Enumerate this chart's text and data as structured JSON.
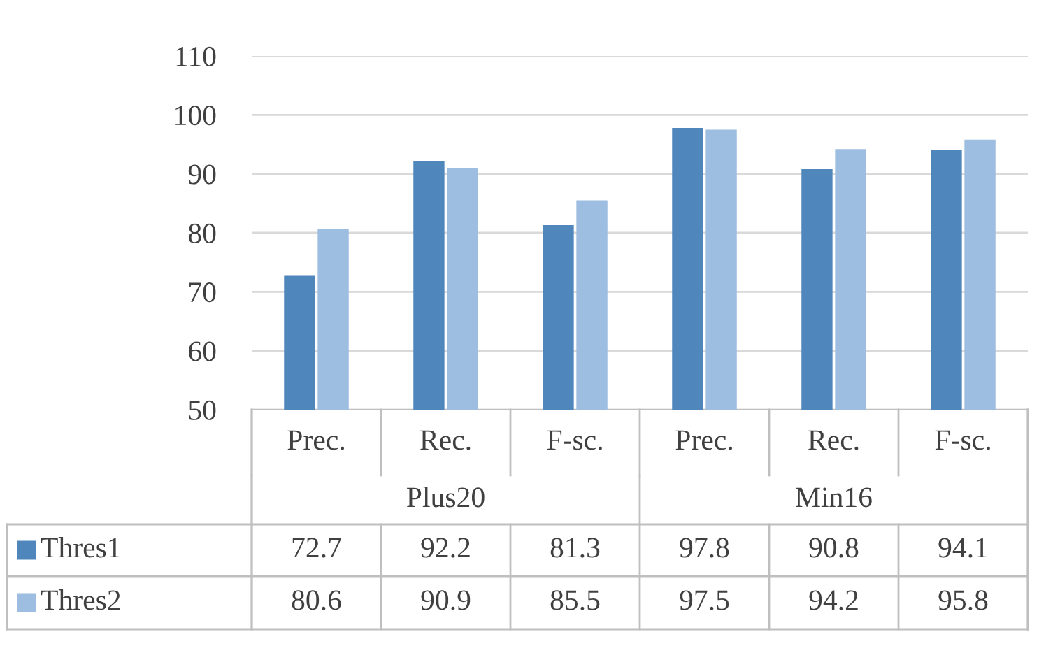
{
  "chart_data": {
    "type": "bar",
    "categories": [
      "Prec.",
      "Rec.",
      "F-sc.",
      "Prec.",
      "Rec.",
      "F-sc."
    ],
    "annotations": [
      "Plus20",
      "Min16"
    ],
    "series": [
      {
        "name": "Thres1",
        "color": "#4f86bb",
        "values": [
          72.7,
          92.2,
          81.3,
          97.8,
          90.8,
          94.1
        ]
      },
      {
        "name": "Thres2",
        "color": "#9dbde1",
        "values": [
          80.6,
          90.9,
          85.5,
          97.5,
          94.2,
          95.8
        ]
      }
    ],
    "ylim": [
      50,
      110
    ],
    "yticks": [
      50,
      60,
      70,
      80,
      90,
      100,
      110
    ],
    "grid": "y",
    "data_labels": true,
    "legend": "bottom"
  }
}
